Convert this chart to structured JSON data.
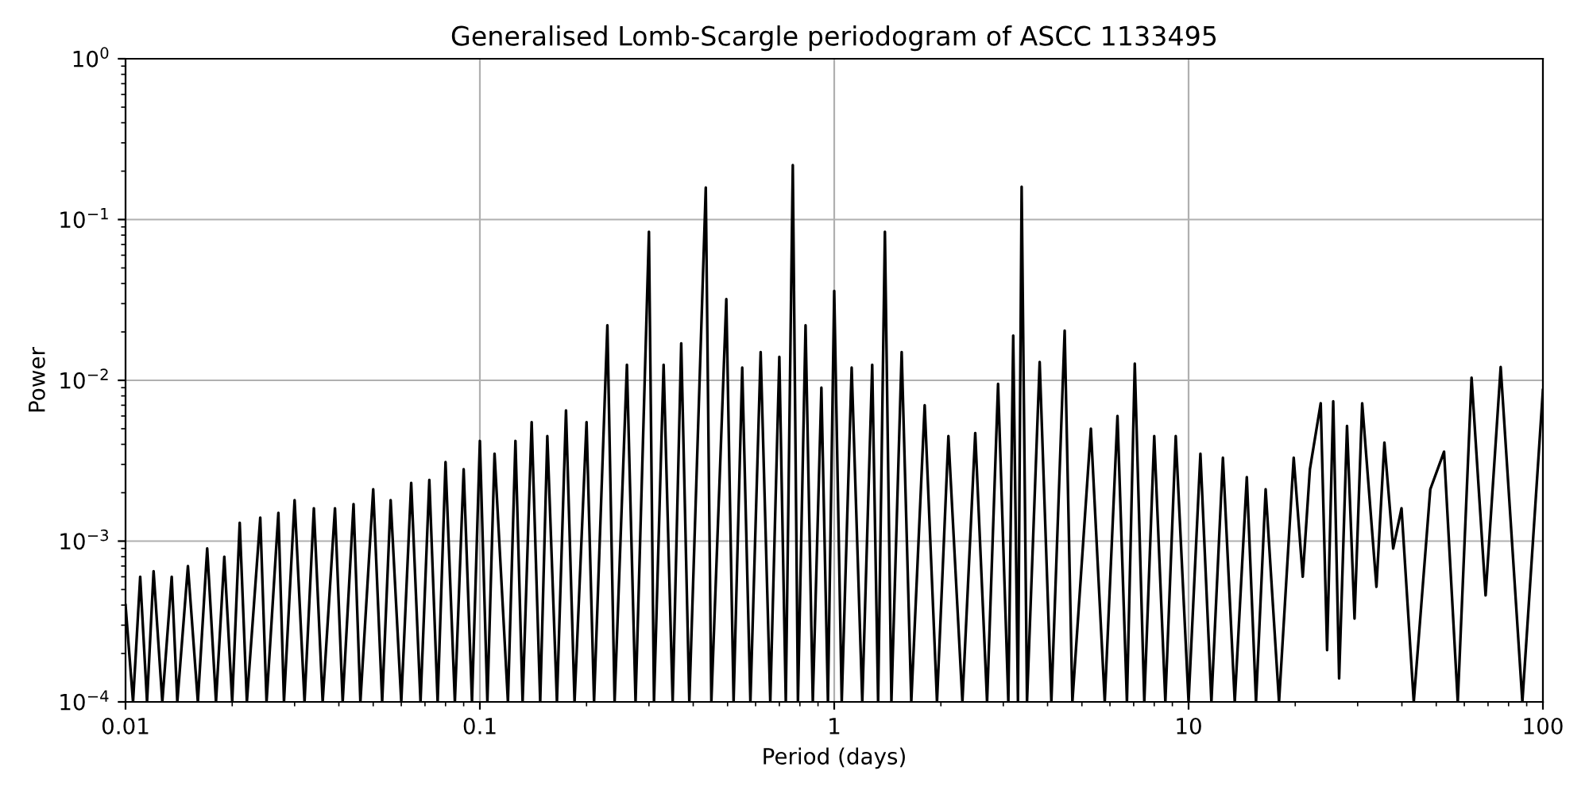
{
  "chart_data": {
    "type": "line",
    "title": "Generalised Lomb-Scargle periodogram of ASCC 1133495",
    "xlabel": "Period (days)",
    "ylabel": "Power",
    "log": "xy",
    "grid": true,
    "xlim": [
      0.01,
      100
    ],
    "ylim": [
      0.0001,
      1
    ],
    "xticks": [
      {
        "value": 0.01,
        "label": "0.01"
      },
      {
        "value": 0.1,
        "label": "0.1"
      },
      {
        "value": 1,
        "label": "1"
      },
      {
        "value": 10,
        "label": "10"
      },
      {
        "value": 100,
        "label": "100"
      }
    ],
    "yticks": [
      {
        "value": 0.0001,
        "label": "10$^{−4}$"
      },
      {
        "value": 0.001,
        "label": "10$^{−3}$"
      },
      {
        "value": 0.01,
        "label": "10$^{−2}$"
      },
      {
        "value": 0.1,
        "label": "10$^{−1}$"
      },
      {
        "value": 1,
        "label": "10$^{0}$"
      }
    ],
    "series": [
      {
        "color": "#000000",
        "x": [
          0.01,
          0.0105,
          0.011,
          0.0115,
          0.012,
          0.0127,
          0.0135,
          0.014,
          0.015,
          0.016,
          0.017,
          0.018,
          0.019,
          0.02,
          0.021,
          0.022,
          0.024,
          0.025,
          0.027,
          0.028,
          0.03,
          0.032,
          0.034,
          0.036,
          0.039,
          0.041,
          0.044,
          0.046,
          0.05,
          0.053,
          0.056,
          0.06,
          0.064,
          0.068,
          0.072,
          0.076,
          0.08,
          0.085,
          0.09,
          0.095,
          0.1,
          0.105,
          0.11,
          0.12,
          0.126,
          0.132,
          0.14,
          0.148,
          0.155,
          0.165,
          0.175,
          0.185,
          0.2,
          0.21,
          0.229,
          0.24,
          0.26,
          0.275,
          0.3,
          0.31,
          0.33,
          0.35,
          0.37,
          0.39,
          0.434,
          0.45,
          0.496,
          0.52,
          0.55,
          0.58,
          0.62,
          0.66,
          0.7,
          0.73,
          0.764,
          0.79,
          0.83,
          0.87,
          0.92,
          0.96,
          1.0,
          1.05,
          1.12,
          1.2,
          1.28,
          1.33,
          1.39,
          1.45,
          1.55,
          1.65,
          1.8,
          1.95,
          2.1,
          2.3,
          2.5,
          2.7,
          2.9,
          3.1,
          3.2,
          3.3,
          3.38,
          3.5,
          3.8,
          4.1,
          4.47,
          4.7,
          5.3,
          5.8,
          6.3,
          6.7,
          7.05,
          7.5,
          8.0,
          8.6,
          9.2,
          10,
          10.8,
          11.6,
          12.5,
          13.5,
          14.6,
          15.5,
          16.5,
          18,
          19.8,
          21,
          22,
          23.6,
          24.6,
          25.6,
          26.6,
          28.0,
          29.4,
          30.9,
          33.9,
          35.7,
          37.8,
          39.9,
          43.2,
          48.1,
          52.6,
          57.5,
          62.9,
          68.9,
          76.0,
          87.5,
          100
        ],
        "values": [
          0.0004,
          0.0001,
          0.0006,
          0.0001,
          0.00065,
          0.0001,
          0.0006,
          0.0001,
          0.0007,
          0.0001,
          0.0009,
          0.0001,
          0.0008,
          0.0001,
          0.0013,
          0.0001,
          0.0014,
          0.0001,
          0.0015,
          0.0001,
          0.0018,
          0.0001,
          0.0016,
          0.0001,
          0.0016,
          0.0001,
          0.0017,
          0.0001,
          0.0021,
          0.0001,
          0.0018,
          0.0001,
          0.0023,
          0.0001,
          0.0024,
          0.0001,
          0.0031,
          0.0001,
          0.0028,
          0.0001,
          0.0042,
          0.0001,
          0.0035,
          0.0001,
          0.0042,
          0.0001,
          0.0055,
          0.0001,
          0.0045,
          0.0001,
          0.0065,
          0.0001,
          0.0055,
          0.0001,
          0.022,
          0.0001,
          0.0125,
          0.0001,
          0.084,
          0.0001,
          0.0125,
          0.0001,
          0.017,
          0.0001,
          0.158,
          0.0001,
          0.032,
          0.0001,
          0.012,
          0.0001,
          0.015,
          0.0001,
          0.014,
          0.0001,
          0.218,
          0.0001,
          0.022,
          0.0001,
          0.009,
          0.0001,
          0.036,
          0.0001,
          0.012,
          0.0001,
          0.0125,
          0.0001,
          0.084,
          0.0001,
          0.015,
          0.0001,
          0.007,
          0.0001,
          0.0045,
          0.0001,
          0.0047,
          0.0001,
          0.0095,
          0.0001,
          0.019,
          0.0001,
          0.16,
          0.0001,
          0.013,
          0.0001,
          0.0204,
          0.0001,
          0.005,
          0.0001,
          0.006,
          0.0001,
          0.0127,
          0.0001,
          0.0045,
          0.0001,
          0.0045,
          0.0001,
          0.0035,
          0.0001,
          0.0033,
          0.0001,
          0.0025,
          0.0001,
          0.0021,
          0.0001,
          0.0033,
          0.0006,
          0.0028,
          0.0072,
          0.00021,
          0.0074,
          0.00014,
          0.0052,
          0.00033,
          0.0072,
          0.00052,
          0.0041,
          0.0009,
          0.0016,
          0.0001,
          0.0021,
          0.0036,
          0.0001,
          0.0104,
          0.00046,
          0.0121,
          0.0001,
          0.0087
        ]
      }
    ]
  }
}
